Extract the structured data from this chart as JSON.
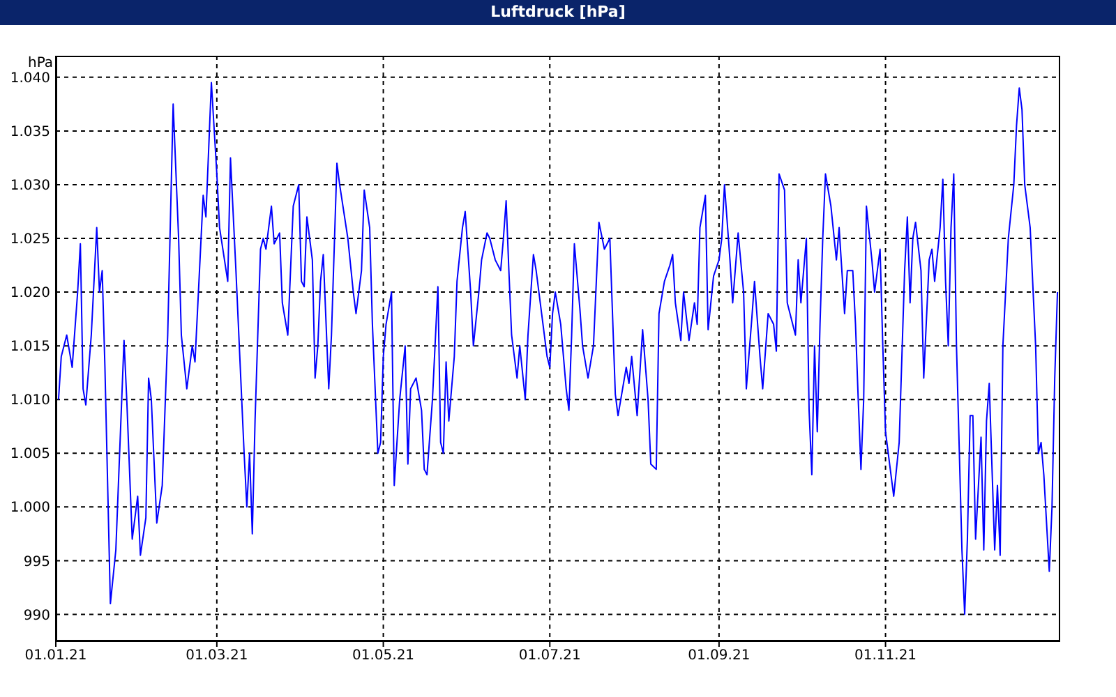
{
  "chart_data": {
    "type": "line",
    "title": "Luftdruck [hPa]",
    "ylabel": "hPa",
    "x": [
      "2021-01-02",
      "2021-01-03",
      "2021-01-05",
      "2021-01-07",
      "2021-01-09",
      "2021-01-10",
      "2021-01-11",
      "2021-01-12",
      "2021-01-14",
      "2021-01-16",
      "2021-01-17",
      "2021-01-18",
      "2021-01-19",
      "2021-01-21",
      "2021-01-23",
      "2021-01-26",
      "2021-01-27",
      "2021-01-29",
      "2021-01-31",
      "2021-02-01",
      "2021-02-03",
      "2021-02-04",
      "2021-02-05",
      "2021-02-07",
      "2021-02-09",
      "2021-02-11",
      "2021-02-13",
      "2021-02-15",
      "2021-02-16",
      "2021-02-18",
      "2021-02-20",
      "2021-02-21",
      "2021-02-24",
      "2021-02-25",
      "2021-02-27",
      "2021-03-01",
      "2021-03-02",
      "2021-03-05",
      "2021-03-06",
      "2021-03-08",
      "2021-03-11",
      "2021-03-12",
      "2021-03-13",
      "2021-03-14",
      "2021-03-15",
      "2021-03-17",
      "2021-03-18",
      "2021-03-19",
      "2021-03-21",
      "2021-03-22",
      "2021-03-24",
      "2021-03-25",
      "2021-03-27",
      "2021-03-29",
      "2021-03-31",
      "2021-04-01",
      "2021-04-02",
      "2021-04-03",
      "2021-04-05",
      "2021-04-06",
      "2021-04-07",
      "2021-04-08",
      "2021-04-09",
      "2021-04-11",
      "2021-04-12",
      "2021-04-14",
      "2021-04-15",
      "2021-04-18",
      "2021-04-20",
      "2021-04-21",
      "2021-04-23",
      "2021-04-24",
      "2021-04-26",
      "2021-04-27",
      "2021-04-29",
      "2021-04-30",
      "2021-05-01",
      "2021-05-02",
      "2021-05-04",
      "2021-05-05",
      "2021-05-06",
      "2021-05-07",
      "2021-05-09",
      "2021-05-10",
      "2021-05-11",
      "2021-05-13",
      "2021-05-15",
      "2021-05-16",
      "2021-05-17",
      "2021-05-19",
      "2021-05-21",
      "2021-05-22",
      "2021-05-23",
      "2021-05-24",
      "2021-05-25",
      "2021-05-27",
      "2021-05-28",
      "2021-05-30",
      "2021-05-31",
      "2021-06-02",
      "2021-06-03",
      "2021-06-05",
      "2021-06-06",
      "2021-06-08",
      "2021-06-09",
      "2021-06-11",
      "2021-06-13",
      "2021-06-14",
      "2021-06-15",
      "2021-06-16",
      "2021-06-17",
      "2021-06-19",
      "2021-06-20",
      "2021-06-22",
      "2021-06-23",
      "2021-06-25",
      "2021-06-26",
      "2021-06-28",
      "2021-06-30",
      "2021-07-01",
      "2021-07-02",
      "2021-07-03",
      "2021-07-05",
      "2021-07-07",
      "2021-07-08",
      "2021-07-09",
      "2021-07-10",
      "2021-07-12",
      "2021-07-13",
      "2021-07-15",
      "2021-07-17",
      "2021-07-19",
      "2021-07-21",
      "2021-07-23",
      "2021-07-25",
      "2021-07-26",
      "2021-07-29",
      "2021-07-30",
      "2021-07-31",
      "2021-08-02",
      "2021-08-04",
      "2021-08-06",
      "2021-08-07",
      "2021-08-09",
      "2021-08-10",
      "2021-08-12",
      "2021-08-14",
      "2021-08-15",
      "2021-08-16",
      "2021-08-18",
      "2021-08-19",
      "2021-08-21",
      "2021-08-23",
      "2021-08-24",
      "2021-08-25",
      "2021-08-27",
      "2021-08-28",
      "2021-08-30",
      "2021-09-01",
      "2021-09-02",
      "2021-09-03",
      "2021-09-05",
      "2021-09-06",
      "2021-09-08",
      "2021-09-10",
      "2021-09-11",
      "2021-09-13",
      "2021-09-14",
      "2021-09-16",
      "2021-09-17",
      "2021-09-19",
      "2021-09-21",
      "2021-09-22",
      "2021-09-23",
      "2021-09-25",
      "2021-09-26",
      "2021-09-29",
      "2021-09-30",
      "2021-10-01",
      "2021-10-03",
      "2021-10-04",
      "2021-10-05",
      "2021-10-06",
      "2021-10-07",
      "2021-10-08",
      "2021-10-09",
      "2021-10-10",
      "2021-10-12",
      "2021-10-14",
      "2021-10-15",
      "2021-10-17",
      "2021-10-18",
      "2021-10-20",
      "2021-10-21",
      "2021-10-22",
      "2021-10-23",
      "2021-10-24",
      "2021-10-25",
      "2021-10-27",
      "2021-10-28",
      "2021-10-30",
      "2021-10-31",
      "2021-11-01",
      "2021-11-03",
      "2021-11-04",
      "2021-11-06",
      "2021-11-08",
      "2021-11-09",
      "2021-11-10",
      "2021-11-11",
      "2021-11-12",
      "2021-11-14",
      "2021-11-15",
      "2021-11-17",
      "2021-11-18",
      "2021-11-19",
      "2021-11-21",
      "2021-11-22",
      "2021-11-23",
      "2021-11-24",
      "2021-11-25",
      "2021-11-26",
      "2021-11-27",
      "2021-11-29",
      "2021-11-30",
      "2021-12-01",
      "2021-12-02",
      "2021-12-03",
      "2021-12-04",
      "2021-12-06",
      "2021-12-07",
      "2021-12-08",
      "2021-12-09",
      "2021-12-11",
      "2021-12-12",
      "2021-12-13",
      "2021-12-14",
      "2021-12-16",
      "2021-12-18",
      "2021-12-19",
      "2021-12-20",
      "2021-12-21",
      "2021-12-22",
      "2021-12-24",
      "2021-12-26",
      "2021-12-27",
      "2021-12-28",
      "2021-12-29",
      "2021-12-31",
      "2022-01-01",
      "2022-01-02",
      "2022-01-03"
    ],
    "series": [
      {
        "color": "#0000ff",
        "values": [
          1010,
          1014,
          1016,
          1013,
          1020,
          1024.5,
          1011,
          1009.5,
          1016,
          1026,
          1020,
          1022,
          1013,
          991,
          996,
          1015.5,
          1010,
          997,
          1001,
          995.5,
          999,
          1012,
          1010,
          998.5,
          1002,
          1016,
          1037.5,
          1025,
          1016,
          1011,
          1015,
          1013.5,
          1029,
          1027,
          1039.5,
          1031,
          1026,
          1021,
          1032.5,
          1022,
          1005,
          1000,
          1005,
          997.5,
          1008,
          1024,
          1025,
          1024,
          1028,
          1024.5,
          1025.5,
          1019,
          1016,
          1028,
          1030,
          1021,
          1020.5,
          1027,
          1023,
          1012,
          1015,
          1021,
          1023.5,
          1011,
          1016,
          1032,
          1030,
          1025,
          1020,
          1018,
          1022,
          1029.5,
          1026,
          1017,
          1005,
          1006,
          1014,
          1017,
          1020,
          1002,
          1006,
          1010,
          1015,
          1004,
          1011,
          1012,
          1009,
          1003.5,
          1003,
          1010,
          1020.5,
          1006,
          1005,
          1013.5,
          1008,
          1014,
          1021,
          1026,
          1027.5,
          1020,
          1015,
          1020,
          1023,
          1025.5,
          1025,
          1023,
          1022,
          1025,
          1028.5,
          1022,
          1016,
          1012,
          1015,
          1010,
          1016,
          1023.5,
          1022,
          1018,
          1014,
          1013,
          1018,
          1020,
          1017,
          1011,
          1009,
          1016,
          1024.5,
          1018.5,
          1015,
          1012,
          1015,
          1026.5,
          1024,
          1025,
          1010.5,
          1008.5,
          1013,
          1011.5,
          1014,
          1008.5,
          1016.5,
          1010,
          1004,
          1003.5,
          1018,
          1021,
          1022.5,
          1023.5,
          1019,
          1015.5,
          1020,
          1015.5,
          1019,
          1017,
          1026,
          1029,
          1016.5,
          1021.5,
          1023,
          1025,
          1030,
          1023,
          1019,
          1025.5,
          1020,
          1011,
          1017.5,
          1021,
          1014,
          1011,
          1018,
          1017,
          1014.5,
          1031,
          1029.5,
          1019,
          1016,
          1023,
          1019,
          1025,
          1009,
          1003,
          1015,
          1007,
          1017,
          1025,
          1031,
          1028,
          1023,
          1026,
          1018,
          1022,
          1022,
          1017,
          1010,
          1003.5,
          1010,
          1028,
          1023,
          1020,
          1024,
          1015,
          1007,
          1003,
          1001,
          1006,
          1022,
          1027,
          1019,
          1025,
          1026.5,
          1022,
          1012,
          1023,
          1024,
          1021,
          1026,
          1030.5,
          1021,
          1015,
          1026,
          1031,
          1015,
          996,
          990,
          997,
          1008.5,
          1008.5,
          997,
          1006.5,
          996,
          1008,
          1011.5,
          996,
          1002,
          995.5,
          1015,
          1025,
          1030,
          1035.5,
          1039,
          1037,
          1030,
          1026,
          1015,
          1005,
          1006,
          1003,
          994,
          1000,
          1012,
          1020
        ]
      }
    ],
    "xlim": [
      "2021-01-01",
      "2022-01-04"
    ],
    "xticks": [
      {
        "value": "2021-01-01",
        "label": "01.01.21"
      },
      {
        "value": "2021-03-01",
        "label": "01.03.21"
      },
      {
        "value": "2021-05-01",
        "label": "01.05.21"
      },
      {
        "value": "2021-07-01",
        "label": "01.07.21"
      },
      {
        "value": "2021-09-01",
        "label": "01.09.21"
      },
      {
        "value": "2021-11-01",
        "label": "01.11.21"
      }
    ],
    "ylim": [
      987.5,
      1042
    ],
    "yticks": [
      990,
      995,
      {
        "value": 1000,
        "label": "1.000"
      },
      {
        "value": 1005,
        "label": "1.005"
      },
      {
        "value": 1010,
        "label": "1.010"
      },
      {
        "value": 1015,
        "label": "1.015"
      },
      {
        "value": 1020,
        "label": "1.020"
      },
      {
        "value": 1025,
        "label": "1.025"
      },
      {
        "value": 1030,
        "label": "1.030"
      },
      {
        "value": 1035,
        "label": "1.035"
      },
      {
        "value": 1040,
        "label": "1.040"
      }
    ],
    "grid": true,
    "legend": false,
    "marker": "none"
  }
}
